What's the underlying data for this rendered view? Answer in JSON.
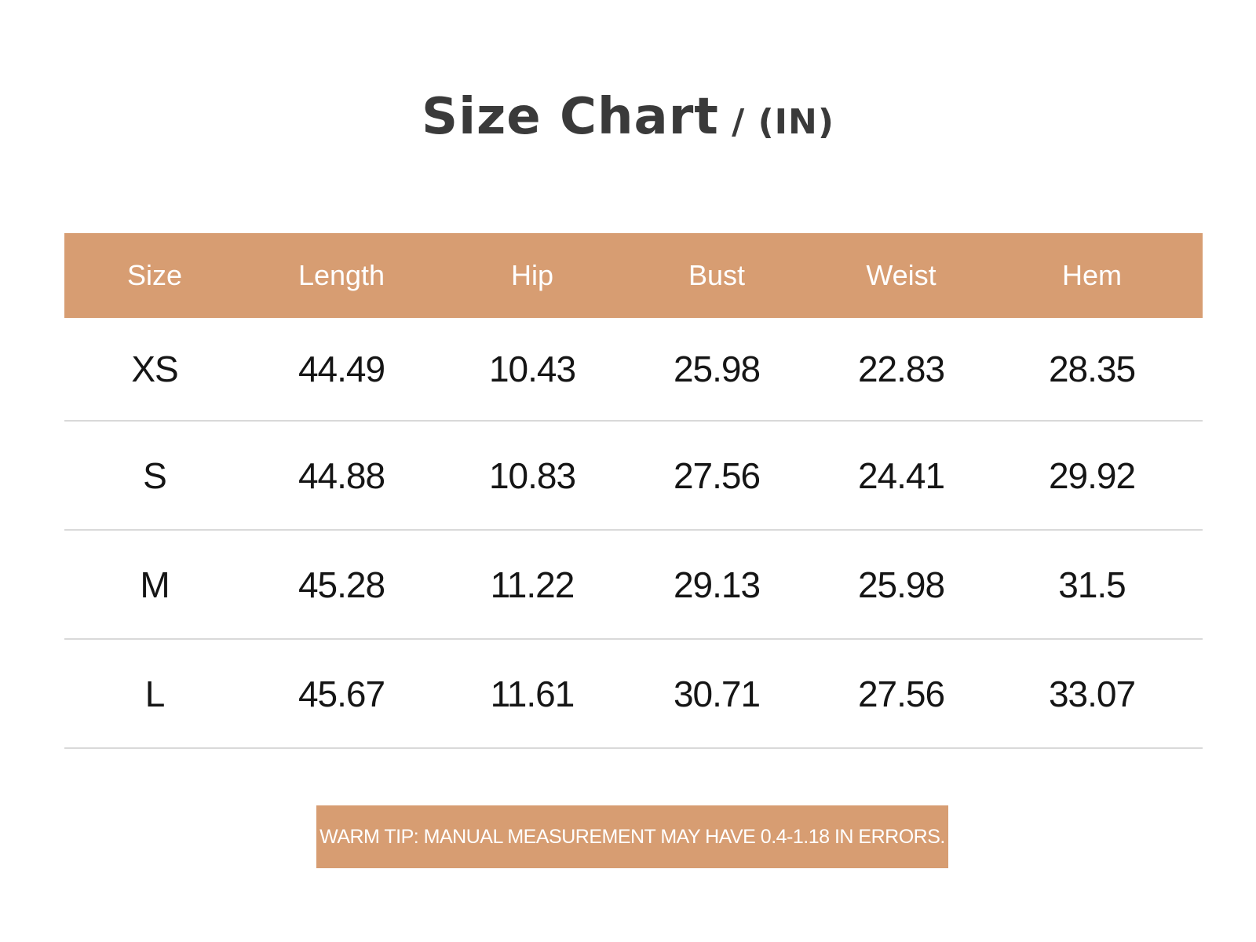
{
  "title": {
    "main": "Size Chart",
    "unit": " / (IN)"
  },
  "table": {
    "headers": [
      "Size",
      "Length",
      "Hip",
      "Bust",
      "Weist",
      "Hem"
    ],
    "rows": [
      [
        "XS",
        "44.49",
        "10.43",
        "25.98",
        "22.83",
        "28.35"
      ],
      [
        "S",
        "44.88",
        "10.83",
        "27.56",
        "24.41",
        "29.92"
      ],
      [
        "M",
        "45.28",
        "11.22",
        "29.13",
        "25.98",
        "31.5"
      ],
      [
        "L",
        "45.67",
        "11.61",
        "30.71",
        "27.56",
        "33.07"
      ]
    ]
  },
  "note": "WARM TIP: MANUAL MEASUREMENT MAY HAVE 0.4-1.18 IN ERRORS.",
  "colors": {
    "accent": "#d79d72",
    "title": "#3a3a3a",
    "divider": "#d9d9d9"
  }
}
